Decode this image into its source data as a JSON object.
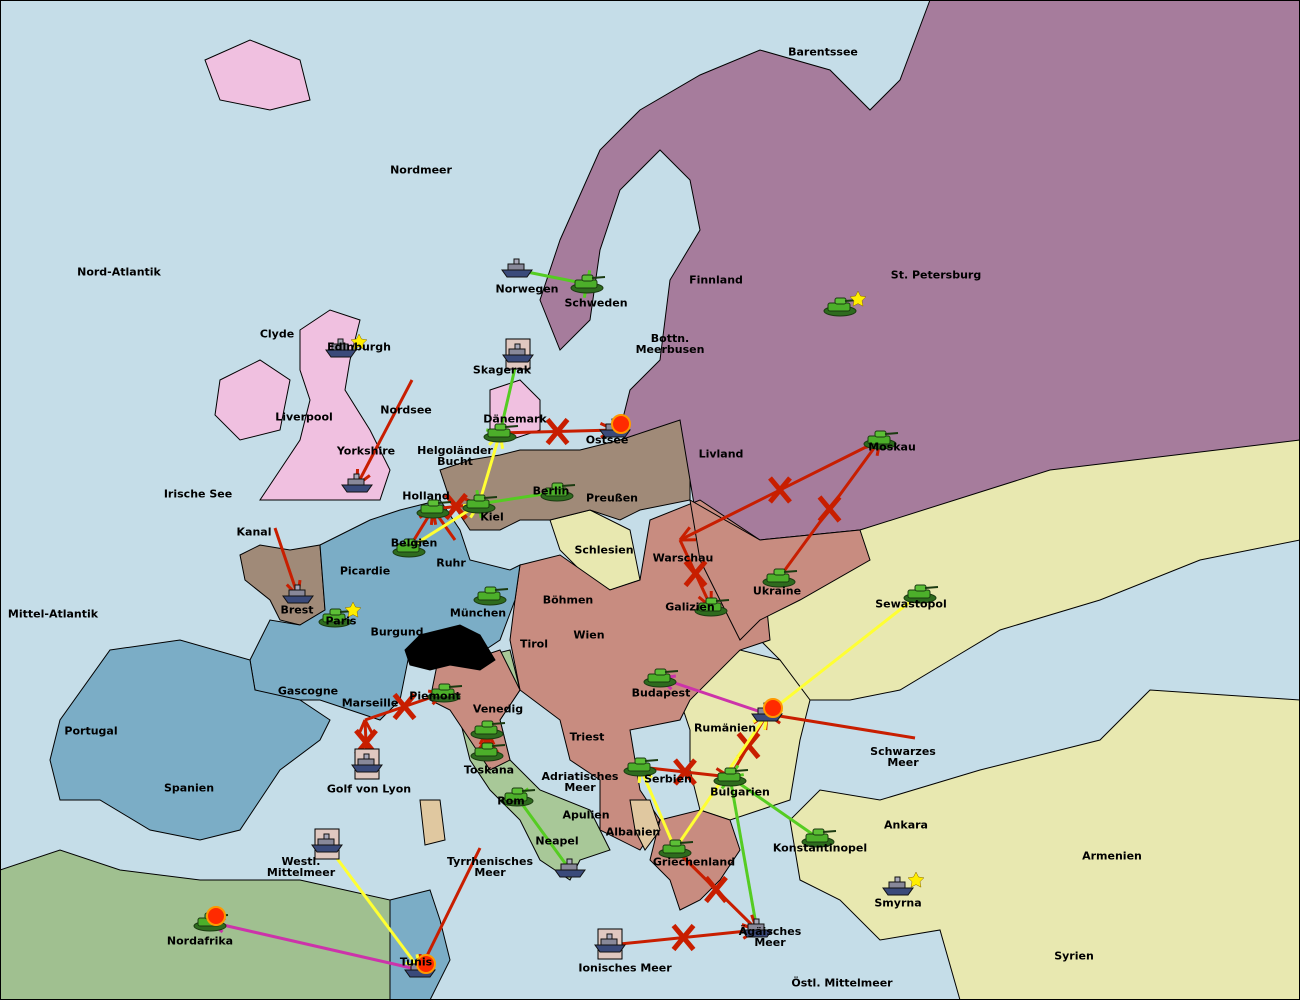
{
  "colors": {
    "sea": "#c5dde8",
    "england": "#f0c0e0",
    "russia": "#a67c9c",
    "germany": "#a08a78",
    "france": "#7badc6",
    "austria": "#c88c80",
    "turkey": "#e8e8b0",
    "italy": "#a8c898",
    "neutral": "#e0c8a0",
    "africa": "#a0c090",
    "switzerland": "#000000",
    "order_move": "#c81e00",
    "order_support": "#ffff33",
    "order_convoy_hold": "#55cc22",
    "order_retreat": "#cc33aa"
  },
  "labels": [
    "Barentssee",
    "Nordmeer",
    "Nord-Atlantik",
    "Clyde",
    "Edinburgh",
    "Norwegen",
    "Schweden",
    "Finnland",
    "St. Petersburg",
    "Bottn. Meerbusen",
    "Skagerak",
    "Liverpool",
    "Nordsee",
    "Dänemark",
    "Ostsee",
    "Yorkshire",
    "Helgoländer Bucht",
    "Livland",
    "Moskau",
    "Irische See",
    "Holland",
    "Berlin",
    "Preußen",
    "Kiel",
    "Kanal",
    "Belgien",
    "Schlesien",
    "Warschau",
    "Ruhr",
    "Picardie",
    "Ukraine",
    "Böhmen",
    "Brest",
    "Galizien",
    "Sewastopol",
    "Mittel-Atlantik",
    "Paris",
    "Burgund",
    "München",
    "Wien",
    "Tirol",
    "Gascogne",
    "Budapest",
    "Piemont",
    "Marseille",
    "Venedig",
    "Rumänien",
    "Portugal",
    "Triest",
    "Schwarzes Meer",
    "Toskana",
    "Spanien",
    "Golf von Lyon",
    "Adriatisches Meer",
    "Serbien",
    "Bulgarien",
    "Rom",
    "Apulien",
    "Ankara",
    "Albanien",
    "Neapel",
    "Konstantinopel",
    "Armenien",
    "Westl. Mittelmeer",
    "Tyrrhenisches Meer",
    "Griechenland",
    "Smyrna",
    "Nordafrika",
    "Ägäisches Meer",
    "Tunis",
    "Ionisches Meer",
    "Syrien",
    "Östl. Mittelmeer"
  ],
  "units": [
    {
      "type": "army",
      "province": "Schweden"
    },
    {
      "type": "army",
      "province": "St. Petersburg",
      "star": true
    },
    {
      "type": "army",
      "province": "Dänemark"
    },
    {
      "type": "army",
      "province": "Holland"
    },
    {
      "type": "army",
      "province": "Kiel"
    },
    {
      "type": "army",
      "province": "Berlin"
    },
    {
      "type": "army",
      "province": "Belgien"
    },
    {
      "type": "army",
      "province": "München"
    },
    {
      "type": "army",
      "province": "Galizien"
    },
    {
      "type": "army",
      "province": "Ukraine"
    },
    {
      "type": "army",
      "province": "Moskau"
    },
    {
      "type": "army",
      "province": "Sewastopol"
    },
    {
      "type": "army",
      "province": "Budapest"
    },
    {
      "type": "army",
      "province": "Piemont"
    },
    {
      "type": "army",
      "province": "Venedig"
    },
    {
      "type": "army",
      "province": "Toskana"
    },
    {
      "type": "army",
      "province": "Serbien"
    },
    {
      "type": "army",
      "province": "Bulgarien"
    },
    {
      "type": "army",
      "province": "Griechenland"
    },
    {
      "type": "army",
      "province": "Konstantinopel"
    },
    {
      "type": "army",
      "province": "Paris",
      "star": true
    },
    {
      "type": "army",
      "province": "Rom"
    },
    {
      "type": "fleet",
      "province": "Norwegen"
    },
    {
      "type": "fleet",
      "province": "Edinburgh",
      "star": true
    },
    {
      "type": "fleet",
      "province": "Yorkshire"
    },
    {
      "type": "fleet",
      "province": "Brest"
    },
    {
      "type": "fleet",
      "province": "Ostsee",
      "dislodged": true
    },
    {
      "type": "fleet",
      "province": "Rumänien",
      "dislodged": true
    },
    {
      "type": "fleet",
      "province": "Neapel"
    },
    {
      "type": "fleet",
      "province": "Smyrna",
      "star": true
    },
    {
      "type": "fleet",
      "province": "Tunis",
      "dislodged": true
    },
    {
      "type": "fleet",
      "province": "Ägäisches Meer"
    },
    {
      "type": "fleet",
      "province": "Golf von Lyon",
      "retreat": true
    },
    {
      "type": "fleet",
      "province": "Westl. Mittelmeer",
      "retreat": true
    },
    {
      "type": "fleet",
      "province": "Ionisches Meer",
      "retreat": true
    },
    {
      "type": "fleet",
      "province": "Skagerak",
      "retreat": true
    },
    {
      "type": "army",
      "province": "Nordafrika",
      "dislodged": true
    }
  ],
  "orders": [
    {
      "kind": "move",
      "from": "Moskau",
      "to": "Warschau",
      "failed": true
    },
    {
      "kind": "move",
      "from": "Ukraine",
      "to": "Moskau",
      "failed": true
    },
    {
      "kind": "move",
      "from": "Warschau",
      "to": "Galizien",
      "failed": true
    },
    {
      "kind": "move",
      "from": "Dänemark",
      "to": "Ostsee",
      "failed": true
    },
    {
      "kind": "move",
      "from": "Nordsee",
      "to": "Yorkshire",
      "failed": false
    },
    {
      "kind": "move",
      "from": "Kanal",
      "to": "Brest",
      "failed": false
    },
    {
      "kind": "move",
      "from": "Belgien",
      "to": "Holland",
      "failed": false
    },
    {
      "kind": "move",
      "from": "Ruhr",
      "to": "Holland",
      "failed": false
    },
    {
      "kind": "move",
      "from": "Holland",
      "to": "Kiel",
      "failed": true
    },
    {
      "kind": "support",
      "from": "Belgien",
      "to": "Kiel",
      "failed": false
    },
    {
      "kind": "support",
      "from": "Kiel",
      "to": "Dänemark",
      "failed": false
    },
    {
      "kind": "hold",
      "from": "Berlin",
      "to": "Kiel",
      "failed": false
    },
    {
      "kind": "hold",
      "from": "Norwegen",
      "to": "Schweden",
      "failed": false
    },
    {
      "kind": "hold",
      "from": "Skagerak",
      "to": "Dänemark",
      "failed": false
    },
    {
      "kind": "move",
      "from": "Marseille",
      "to": "Piemont",
      "failed": true
    },
    {
      "kind": "move",
      "from": "Golf von Lyon",
      "to": "Marseille",
      "failed": true
    },
    {
      "kind": "move",
      "from": "Toskana",
      "to": "Venedig",
      "failed": true
    },
    {
      "kind": "move",
      "from": "Tyrrhenisches Meer",
      "to": "Tunis",
      "failed": false
    },
    {
      "kind": "support",
      "from": "Westl. Mittelmeer",
      "to": "Tunis",
      "failed": false
    },
    {
      "kind": "retreat",
      "from": "Tunis",
      "to": "Nordafrika",
      "failed": false
    },
    {
      "kind": "retreat",
      "from": "Rumänien",
      "to": "Budapest",
      "failed": false
    },
    {
      "kind": "move",
      "from": "Schwarzes Meer",
      "to": "Rumänien",
      "failed": false
    },
    {
      "kind": "support",
      "from": "Sewastopol",
      "to": "Rumänien",
      "failed": false
    },
    {
      "kind": "move",
      "from": "Serbien",
      "to": "Bulgarien",
      "failed": true
    },
    {
      "kind": "move",
      "from": "Bulgarien",
      "to": "Rumänien",
      "failed": true
    },
    {
      "kind": "support",
      "from": "Griechenland",
      "to": "Rumänien",
      "failed": false
    },
    {
      "kind": "support",
      "from": "Griechenland",
      "to": "Serbien",
      "failed": false
    },
    {
      "kind": "hold",
      "from": "Konstantinopel",
      "to": "Bulgarien",
      "failed": false
    },
    {
      "kind": "hold",
      "from": "Ägäisches Meer",
      "to": "Bulgarien",
      "failed": false
    },
    {
      "kind": "move",
      "from": "Ionisches Meer",
      "to": "Ägäisches Meer",
      "failed": true
    },
    {
      "kind": "hold",
      "from": "Neapel",
      "to": "Rom",
      "failed": false
    },
    {
      "kind": "move",
      "from": "Griechenland",
      "to": "Ägäisches Meer",
      "failed": true
    }
  ]
}
